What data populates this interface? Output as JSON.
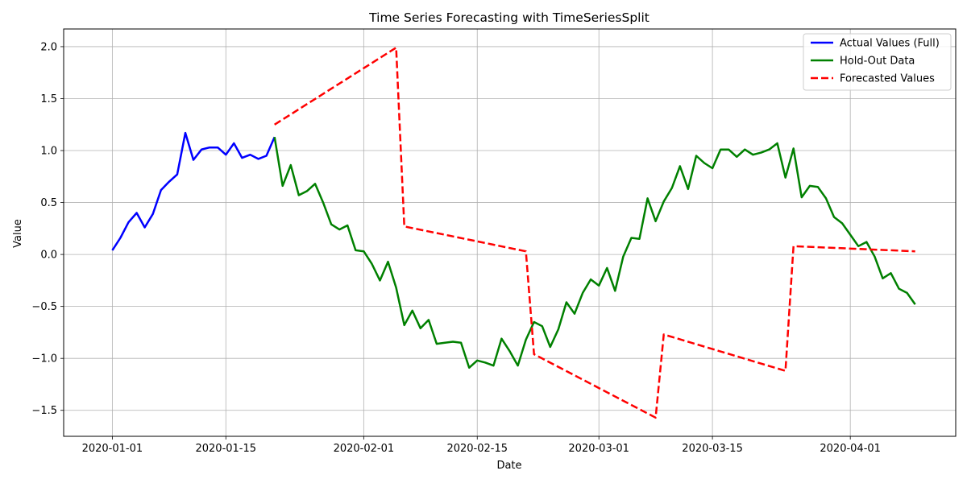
{
  "chart_data": {
    "type": "line",
    "title": "Time Series Forecasting with TimeSeriesSplit",
    "xlabel": "Date",
    "ylabel": "Value",
    "x_start": "2020-01-01",
    "x_end": "2020-04-09",
    "xlim": [
      "2019-12-26",
      "2020-04-14"
    ],
    "ylim": [
      -1.75,
      2.17
    ],
    "x_ticks": [
      "2020-01-01",
      "2020-01-15",
      "2020-02-01",
      "2020-02-15",
      "2020-03-01",
      "2020-03-15",
      "2020-04-01"
    ],
    "y_ticks": [
      -1.5,
      -1.0,
      -0.5,
      0.0,
      0.5,
      1.0,
      1.5,
      2.0
    ],
    "y_tick_labels": [
      "−1.5",
      "−1.0",
      "−0.5",
      "0.0",
      "0.5",
      "1.0",
      "1.5",
      "2.0"
    ],
    "grid": true,
    "legend_position": "top-right",
    "series": [
      {
        "name": "Actual Values (Full)",
        "color": "#0000ff",
        "style": "solid",
        "x": [
          "2020-01-01",
          "2020-01-02",
          "2020-01-03",
          "2020-01-04",
          "2020-01-05",
          "2020-01-06",
          "2020-01-07",
          "2020-01-08",
          "2020-01-09",
          "2020-01-10",
          "2020-01-11",
          "2020-01-12",
          "2020-01-13",
          "2020-01-14",
          "2020-01-15",
          "2020-01-16",
          "2020-01-17",
          "2020-01-18",
          "2020-01-19",
          "2020-01-20",
          "2020-01-21"
        ],
        "y": [
          0.04,
          0.16,
          0.31,
          0.4,
          0.26,
          0.39,
          0.62,
          0.7,
          0.77,
          1.17,
          0.91,
          1.01,
          1.03,
          1.03,
          0.96,
          1.07,
          0.93,
          0.96,
          0.92,
          0.95,
          1.13
        ]
      },
      {
        "name": "Hold-Out Data",
        "color": "#008000",
        "style": "solid",
        "x": [
          "2020-01-21",
          "2020-01-22",
          "2020-01-23",
          "2020-01-24",
          "2020-01-25",
          "2020-01-26",
          "2020-01-27",
          "2020-01-28",
          "2020-01-29",
          "2020-01-30",
          "2020-01-31",
          "2020-02-01",
          "2020-02-02",
          "2020-02-03",
          "2020-02-04",
          "2020-02-05",
          "2020-02-06",
          "2020-02-07",
          "2020-02-08",
          "2020-02-09",
          "2020-02-10",
          "2020-02-11",
          "2020-02-12",
          "2020-02-13",
          "2020-02-14",
          "2020-02-15",
          "2020-02-16",
          "2020-02-17",
          "2020-02-18",
          "2020-02-19",
          "2020-02-20",
          "2020-02-21",
          "2020-02-22",
          "2020-02-23",
          "2020-02-24",
          "2020-02-25",
          "2020-02-26",
          "2020-02-27",
          "2020-02-28",
          "2020-02-29",
          "2020-03-01",
          "2020-03-02",
          "2020-03-03",
          "2020-03-04",
          "2020-03-05",
          "2020-03-06",
          "2020-03-07",
          "2020-03-08",
          "2020-03-09",
          "2020-03-10",
          "2020-03-11",
          "2020-03-12",
          "2020-03-13",
          "2020-03-14",
          "2020-03-15",
          "2020-03-16",
          "2020-03-17",
          "2020-03-18",
          "2020-03-19",
          "2020-03-20",
          "2020-03-21",
          "2020-03-22",
          "2020-03-23",
          "2020-03-24",
          "2020-03-25",
          "2020-03-26",
          "2020-03-27",
          "2020-03-28",
          "2020-03-29",
          "2020-03-30",
          "2020-03-31",
          "2020-04-01",
          "2020-04-02",
          "2020-04-03",
          "2020-04-04",
          "2020-04-05",
          "2020-04-06",
          "2020-04-07",
          "2020-04-08",
          "2020-04-09"
        ],
        "y": [
          1.13,
          0.66,
          0.86,
          0.57,
          0.61,
          0.68,
          0.5,
          0.29,
          0.24,
          0.28,
          0.04,
          0.03,
          -0.09,
          -0.25,
          -0.07,
          -0.32,
          -0.68,
          -0.54,
          -0.71,
          -0.63,
          -0.86,
          -0.85,
          -0.84,
          -0.85,
          -1.09,
          -1.02,
          -1.04,
          -1.07,
          -0.81,
          -0.93,
          -1.07,
          -0.82,
          -0.65,
          -0.69,
          -0.89,
          -0.72,
          -0.46,
          -0.57,
          -0.37,
          -0.24,
          -0.3,
          -0.13,
          -0.35,
          -0.02,
          0.16,
          0.15,
          0.54,
          0.32,
          0.51,
          0.64,
          0.85,
          0.63,
          0.95,
          0.88,
          0.83,
          1.01,
          1.01,
          0.94,
          1.01,
          0.96,
          0.98,
          1.01,
          1.07,
          0.74,
          1.02,
          0.55,
          0.66,
          0.65,
          0.54,
          0.36,
          0.3,
          0.19,
          0.08,
          0.12,
          -0.02,
          -0.23,
          -0.18,
          -0.33,
          -0.37,
          -0.48
        ]
      },
      {
        "name": "Forecasted Values",
        "color": "#ff0000",
        "style": "dashed",
        "x": [
          "2020-01-21",
          "2020-02-05",
          "2020-02-06",
          "2020-02-21",
          "2020-02-22",
          "2020-03-08",
          "2020-03-09",
          "2020-03-24",
          "2020-03-25",
          "2020-04-09"
        ],
        "y": [
          1.25,
          1.99,
          0.27,
          0.03,
          -0.96,
          -1.57,
          -0.77,
          -1.12,
          0.08,
          0.03
        ]
      }
    ]
  }
}
